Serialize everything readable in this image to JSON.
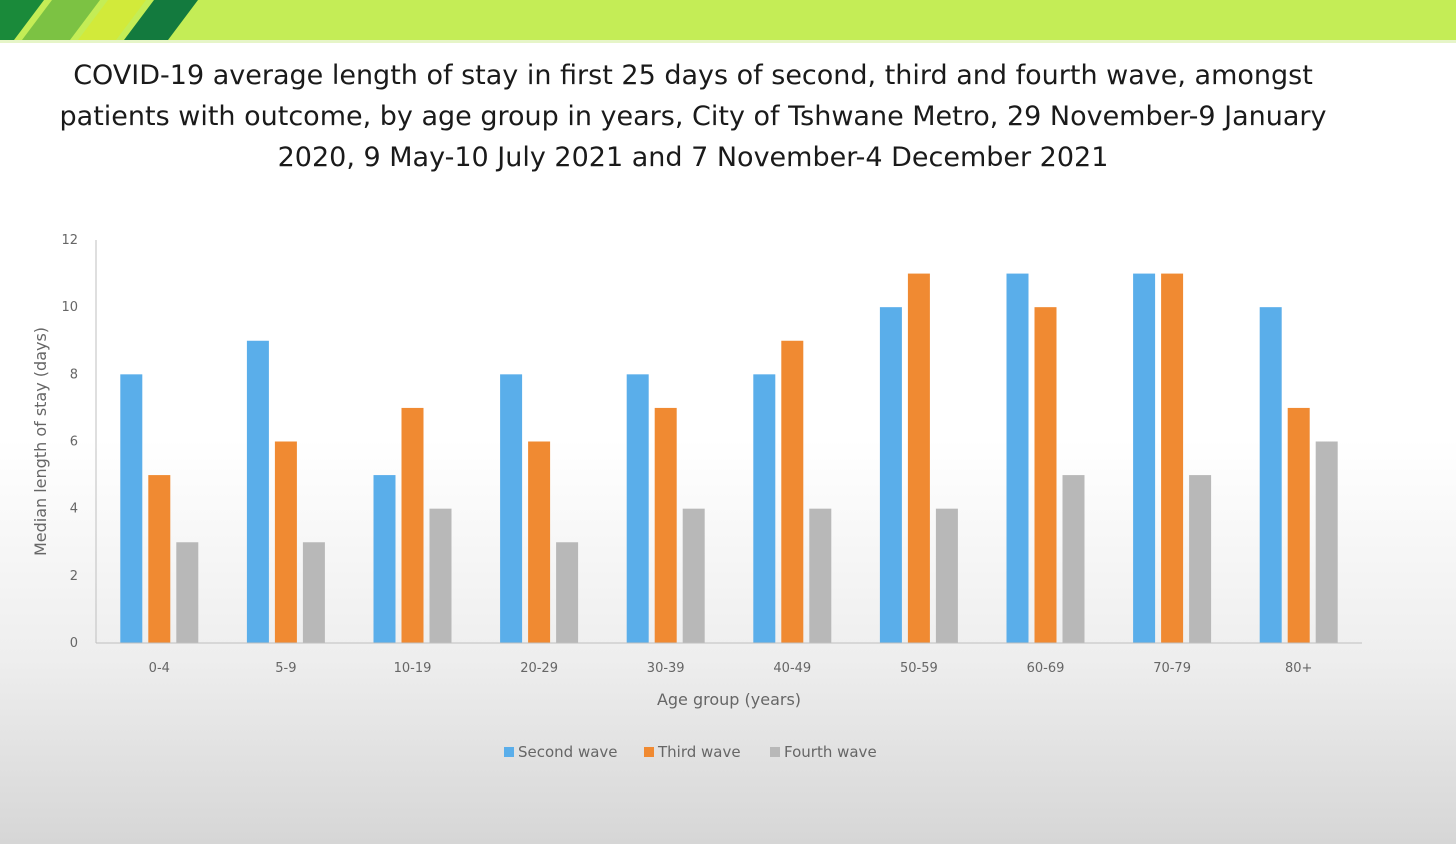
{
  "slide": {
    "title": "COVID-19 average length of stay in first 25 days of second, third and fourth wave, amongst patients with outcome, by age group in years, City of Tshwane Metro, 29 November-9 January 2020, 9 May-10 July 2021 and 7 November-4 December 2021",
    "banner_colors": [
      "#1a8a3a",
      "#7cc243",
      "#d2ea3a",
      "#137a3e",
      "#c4ed56"
    ]
  },
  "chart_data": {
    "type": "bar",
    "title": "COVID-19 average length of stay in first 25 days of second, third and fourth wave, amongst patients with outcome, by age group in years, City of Tshwane Metro, 29 November-9 January 2020, 9 May-10 July 2021 and 7 November-4 December 2021",
    "xlabel": "Age group (years)",
    "ylabel": "Median length of stay (days)",
    "ylim": [
      0,
      12
    ],
    "yticks": [
      0,
      2,
      4,
      6,
      8,
      10,
      12
    ],
    "grid": false,
    "legend_position": "bottom",
    "categories": [
      "0-4",
      "5-9",
      "10-19",
      "20-29",
      "30-39",
      "40-49",
      "50-59",
      "60-69",
      "70-79",
      "80+"
    ],
    "series": [
      {
        "name": "Second wave",
        "color": "#5aaeea",
        "values": [
          8,
          9,
          5,
          8,
          8,
          8,
          10,
          11,
          11,
          10
        ]
      },
      {
        "name": "Third wave",
        "color": "#f08a32",
        "values": [
          5,
          6,
          7,
          6,
          7,
          9,
          11,
          10,
          11,
          7
        ]
      },
      {
        "name": "Fourth wave",
        "color": "#b8b8b8",
        "values": [
          3,
          3,
          4,
          3,
          4,
          4,
          4,
          5,
          5,
          6
        ]
      }
    ]
  }
}
